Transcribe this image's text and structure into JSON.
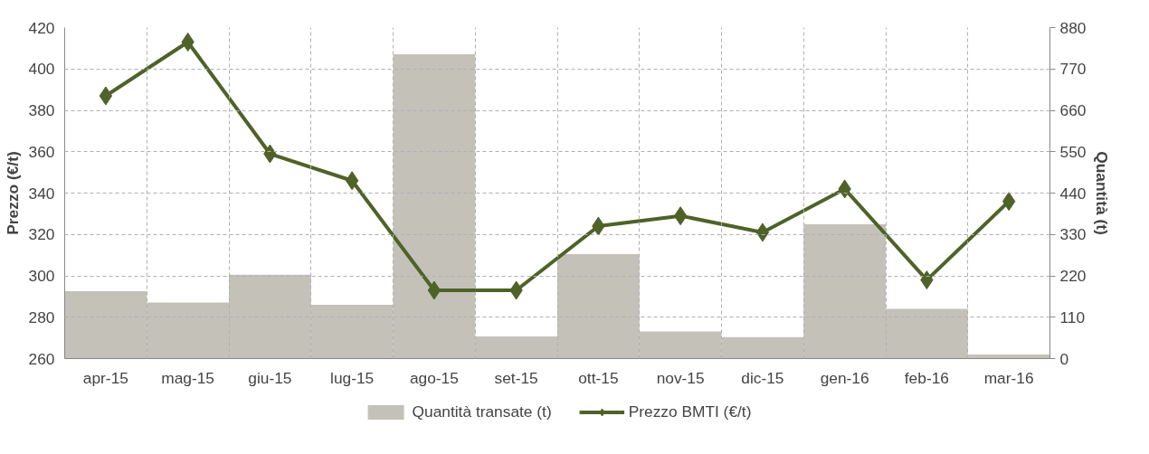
{
  "chart_data": {
    "type": "bar",
    "categories": [
      "apr-15",
      "mag-15",
      "giu-15",
      "lug-15",
      "ago-15",
      "set-15",
      "ott-15",
      "nov-15",
      "dic-15",
      "gen-16",
      "feb-16",
      "mar-16"
    ],
    "ylabel": "Prezzo (€/t)",
    "y2label": "Quantità (t)",
    "ylim": [
      260,
      420
    ],
    "yticks": [
      260,
      280,
      300,
      320,
      340,
      360,
      380,
      400,
      420
    ],
    "y2lim": [
      0,
      880
    ],
    "y2ticks": [
      0,
      110,
      220,
      330,
      440,
      550,
      660,
      770,
      880
    ],
    "grid": true,
    "legend": "bottom",
    "series": [
      {
        "name": "Quantità transate (t)",
        "axis": "y2",
        "color": "#c4c1b9",
        "values": [
          179,
          149,
          223,
          143,
          809,
          59,
          278,
          72,
          57,
          357,
          132,
          11
        ]
      },
      {
        "name": "Prezzo BMTI (€/t)",
        "type": "line",
        "color": "#4f6228",
        "marker": "diamond",
        "line_style": "solid",
        "values": [
          387,
          413,
          359,
          346,
          293,
          293,
          324,
          329,
          321,
          342,
          298,
          336
        ]
      }
    ]
  }
}
